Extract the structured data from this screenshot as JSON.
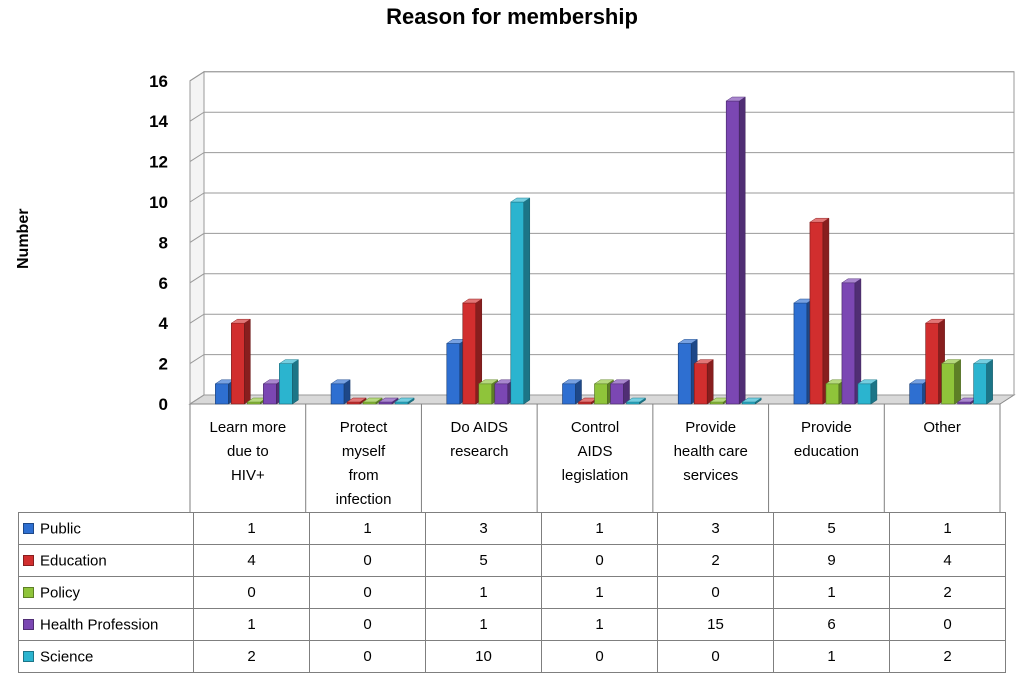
{
  "chart_data": {
    "type": "bar",
    "title": "Reason for membership",
    "ylabel": "Number",
    "xlabel": "",
    "ylim": [
      0,
      16
    ],
    "yticks": [
      0,
      2,
      4,
      6,
      8,
      10,
      12,
      14,
      16
    ],
    "grid": true,
    "legend_placement": "table-left",
    "categories": [
      [
        "Learn more",
        "due to",
        "HIV+"
      ],
      [
        "Protect",
        "myself",
        "from",
        "infection"
      ],
      [
        "Do AIDS",
        "research"
      ],
      [
        "Control",
        "AIDS",
        "legislation"
      ],
      [
        "Provide",
        "health care",
        "services"
      ],
      [
        "Provide",
        "education"
      ],
      [
        "Other"
      ]
    ],
    "series": [
      {
        "name": "Public",
        "color": "#2e6fd1",
        "values": [
          1,
          1,
          3,
          1,
          3,
          5,
          1
        ]
      },
      {
        "name": "Education",
        "color": "#d12e2e",
        "values": [
          4,
          0,
          5,
          0,
          2,
          9,
          4
        ]
      },
      {
        "name": "Policy",
        "color": "#8fc43a",
        "values": [
          0,
          0,
          1,
          1,
          0,
          1,
          2
        ]
      },
      {
        "name": "Health Profession",
        "color": "#7b47b3",
        "values": [
          1,
          0,
          1,
          1,
          15,
          6,
          0
        ]
      },
      {
        "name": "Science",
        "color": "#2bb4cf",
        "values": [
          2,
          0,
          10,
          0,
          0,
          1,
          2
        ]
      }
    ]
  }
}
